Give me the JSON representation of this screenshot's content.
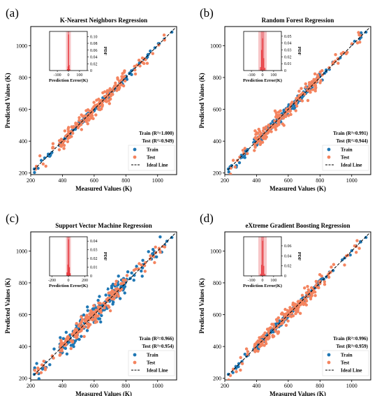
{
  "colors": {
    "train": "#1f77b4",
    "test": "#f4845f",
    "ideal": "#000000",
    "hist_bar": "#e8383d",
    "hist_band_outer": "#f7c6c8",
    "hist_band_inner": "#ee8a8f"
  },
  "chart_data": [
    {
      "type": "scatter",
      "panel_label": "(a)",
      "title": "K-Nearest Neighbors Regression",
      "xlabel": "Measured  Values (K)",
      "ylabel": "Predicted  Values (K)",
      "xlim": [
        200,
        1120
      ],
      "ylim": [
        190,
        1120
      ],
      "xticks": [
        200,
        400,
        600,
        800,
        1000
      ],
      "yticks": [
        200,
        400,
        600,
        800,
        1000
      ],
      "scatter_spread": {
        "train": 8,
        "test": 25
      },
      "stats": {
        "train": "Train (R²=1.000)",
        "test": "Test (R²=0.949)"
      },
      "legend": {
        "position": "lower-right",
        "labels": [
          "Train",
          "Test",
          "Ideal Line"
        ]
      },
      "series": [
        {
          "name": "Train"
        },
        {
          "name": "Test"
        },
        {
          "name": "Ideal Line"
        }
      ],
      "inset": {
        "xlabel": "Prediction Error(K)",
        "ylabel": "PDF",
        "xlim": [
          -170,
          170
        ],
        "xticks": [
          -100,
          0,
          100
        ],
        "ylim": [
          0,
          0.115
        ],
        "yticks": [
          0,
          0.02,
          0.04,
          0.06,
          0.08,
          0.1
        ],
        "ytick_labels": [
          "0",
          "0.02",
          "0.04",
          "0.06",
          "0.08",
          "0.10"
        ],
        "band_outer": [
          -22,
          22
        ],
        "band_inner": [
          -6,
          6
        ],
        "hist": [
          {
            "x": -10,
            "y": 0.004
          },
          {
            "x": -5,
            "y": 0.012
          },
          {
            "x": 0,
            "y": 0.106
          },
          {
            "x": 5,
            "y": 0.016
          },
          {
            "x": 10,
            "y": 0.004
          }
        ]
      }
    },
    {
      "type": "scatter",
      "panel_label": "(b)",
      "title": "Random Forest Regression",
      "xlabel": "Measured  Values (K)",
      "ylabel": "Predicted  Values (K)",
      "xlim": [
        200,
        1120
      ],
      "ylim": [
        190,
        1120
      ],
      "xticks": [
        200,
        400,
        600,
        800,
        1000
      ],
      "yticks": [
        200,
        400,
        600,
        800,
        1000
      ],
      "scatter_spread": {
        "train": 14,
        "test": 26
      },
      "stats": {
        "train": "Train (R²=0.991)",
        "test": "Test (R²=0.944)"
      },
      "legend": {
        "position": "lower-right",
        "labels": [
          "Train",
          "Test",
          "Ideal Line"
        ]
      },
      "series": [
        {
          "name": "Train"
        },
        {
          "name": "Test"
        },
        {
          "name": "Ideal Line"
        }
      ],
      "inset": {
        "xlabel": "Prediction Error(K)",
        "ylabel": "PDF",
        "xlim": [
          -170,
          170
        ],
        "xticks": [
          -100,
          0,
          100
        ],
        "ylim": [
          0,
          0.057
        ],
        "yticks": [
          0,
          0.01,
          0.02,
          0.03,
          0.04,
          0.05
        ],
        "ytick_labels": [
          "0",
          "0.01",
          "0.02",
          "0.03",
          "0.04",
          "0.05"
        ],
        "band_outer": [
          -38,
          38
        ],
        "band_inner": [
          -15,
          15
        ],
        "hist": [
          {
            "x": -20,
            "y": 0.005
          },
          {
            "x": -10,
            "y": 0.03
          },
          {
            "x": 0,
            "y": 0.047
          },
          {
            "x": 10,
            "y": 0.018
          },
          {
            "x": 20,
            "y": 0.004
          }
        ]
      }
    },
    {
      "type": "scatter",
      "panel_label": "(c)",
      "title": "Support Vector Machine Regression",
      "xlabel": "Measured  Values (K)",
      "ylabel": "Predicted  Values (K)",
      "xlim": [
        200,
        1120
      ],
      "ylim": [
        190,
        1120
      ],
      "xticks": [
        200,
        400,
        600,
        800,
        1000
      ],
      "yticks": [
        200,
        400,
        600,
        800,
        1000
      ],
      "scatter_spread": {
        "train": 30,
        "test": 28
      },
      "stats": {
        "train": "Train (R²=0.966)",
        "test": "Test (R²=0.954)"
      },
      "legend": {
        "position": "lower-right",
        "labels": [
          "Train",
          "Test",
          "Ideal Line"
        ]
      },
      "series": [
        {
          "name": "Train"
        },
        {
          "name": "Test"
        },
        {
          "name": "Ideal Line"
        }
      ],
      "inset": {
        "xlabel": "Prediction Error(K)",
        "ylabel": "PDF",
        "xlim": [
          -230,
          230
        ],
        "xticks": [
          -200,
          0,
          200
        ],
        "ylim": [
          0,
          0.045
        ],
        "yticks": [
          0,
          0.01,
          0.02,
          0.03,
          0.04
        ],
        "ytick_labels": [
          "0",
          "0.01",
          "0.02",
          "0.03",
          "0.04"
        ],
        "band_outer": [
          -30,
          30
        ],
        "band_inner": [
          -14,
          14
        ],
        "hist": [
          {
            "x": -20,
            "y": 0.004
          },
          {
            "x": -10,
            "y": 0.013
          },
          {
            "x": 0,
            "y": 0.042
          },
          {
            "x": 10,
            "y": 0.01
          },
          {
            "x": 20,
            "y": 0.003
          }
        ]
      }
    },
    {
      "type": "scatter",
      "panel_label": "(d)",
      "title": "eXtreme Gradient Boosting Regression",
      "xlabel": "Measured  Values (K)",
      "ylabel": "Predicted  Values (K)",
      "xlim": [
        200,
        1120
      ],
      "ylim": [
        190,
        1120
      ],
      "xticks": [
        200,
        400,
        600,
        800,
        1000
      ],
      "yticks": [
        200,
        400,
        600,
        800,
        1000
      ],
      "scatter_spread": {
        "train": 10,
        "test": 25
      },
      "stats": {
        "train": "Train (R²=0.996)",
        "test": "Test (R²=0.959)"
      },
      "legend": {
        "position": "lower-right",
        "labels": [
          "Train",
          "Test",
          "Ideal Line"
        ]
      },
      "series": [
        {
          "name": "Train"
        },
        {
          "name": "Test"
        },
        {
          "name": "Ideal Line"
        }
      ],
      "inset": {
        "xlabel": "Prediction Error(K)",
        "ylabel": "PDF",
        "xlim": [
          -170,
          170
        ],
        "xticks": [
          -100,
          0,
          100
        ],
        "ylim": [
          0,
          0.078
        ],
        "yticks": [
          0,
          0.02,
          0.04,
          0.06
        ],
        "ytick_labels": [
          "0",
          "0.02",
          "0.04",
          "0.06"
        ],
        "band_outer": [
          -38,
          38
        ],
        "band_inner": [
          -12,
          12
        ],
        "hist": [
          {
            "x": -20,
            "y": 0.004
          },
          {
            "x": -10,
            "y": 0.022
          },
          {
            "x": 0,
            "y": 0.07
          },
          {
            "x": 10,
            "y": 0.02
          },
          {
            "x": 20,
            "y": 0.004
          }
        ]
      }
    }
  ]
}
